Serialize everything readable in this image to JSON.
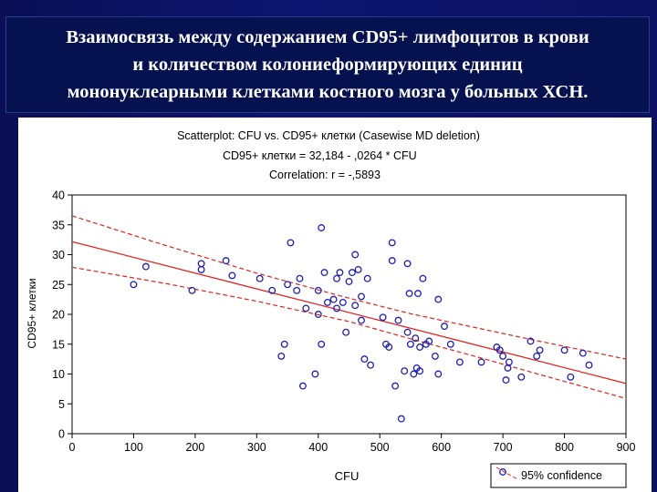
{
  "slide": {
    "title": "Взаимосвязь между содержанием CD95+ лимфоцитов в крови\nи количеством колониеформирующих единиц\nмононуклеарными клетками костного мозга у больных ХСН."
  },
  "colors": {
    "background": "#0b1160",
    "title_bar": "#06114f",
    "title_text": "#ffffff",
    "points": "#1f1fb4",
    "fit_line": "#e0231f",
    "confidence": "#e0231f"
  },
  "chart_data": {
    "type": "scatter",
    "title": "Scatterplot: CFU vs. CD95+ клетки (Casewise MD deletion)",
    "equation": "CD95+ клетки = 32,184 - ,0264  *  CFU",
    "correlation": "Correlation: r = -,5893",
    "xlabel": "CFU",
    "ylabel": "CD95+ клетки",
    "xlim": [
      0,
      900
    ],
    "ylim": [
      0,
      40
    ],
    "xticks": [
      0,
      100,
      200,
      300,
      400,
      500,
      600,
      700,
      800,
      900
    ],
    "yticks": [
      0,
      5,
      10,
      15,
      20,
      25,
      30,
      35,
      40
    ],
    "grid": false,
    "legend": {
      "label": "95% confidence",
      "placement": "bottom-right"
    },
    "regression": {
      "intercept": 32.184,
      "slope": -0.0264
    },
    "confidence_band": {
      "x": [
        0,
        150,
        300,
        450,
        550,
        650,
        750,
        900
      ],
      "upper": [
        36.5,
        31.6,
        26.9,
        22.7,
        20.1,
        17.9,
        15.7,
        12.5
      ],
      "lower": [
        27.9,
        25.2,
        22.2,
        18.8,
        15.9,
        13.1,
        10.2,
        5.9
      ]
    },
    "points": [
      {
        "x": 100,
        "y": 25
      },
      {
        "x": 120,
        "y": 28
      },
      {
        "x": 195,
        "y": 24
      },
      {
        "x": 210,
        "y": 28.5
      },
      {
        "x": 210,
        "y": 27.5
      },
      {
        "x": 250,
        "y": 29
      },
      {
        "x": 260,
        "y": 26.5
      },
      {
        "x": 305,
        "y": 26
      },
      {
        "x": 325,
        "y": 24
      },
      {
        "x": 340,
        "y": 13
      },
      {
        "x": 345,
        "y": 15
      },
      {
        "x": 350,
        "y": 25
      },
      {
        "x": 355,
        "y": 32
      },
      {
        "x": 365,
        "y": 24
      },
      {
        "x": 370,
        "y": 26
      },
      {
        "x": 375,
        "y": 8
      },
      {
        "x": 380,
        "y": 21
      },
      {
        "x": 395,
        "y": 10
      },
      {
        "x": 400,
        "y": 24
      },
      {
        "x": 400,
        "y": 20
      },
      {
        "x": 405,
        "y": 15
      },
      {
        "x": 405,
        "y": 34.5
      },
      {
        "x": 410,
        "y": 27
      },
      {
        "x": 415,
        "y": 22
      },
      {
        "x": 425,
        "y": 22.5
      },
      {
        "x": 430,
        "y": 26
      },
      {
        "x": 430,
        "y": 21
      },
      {
        "x": 435,
        "y": 27
      },
      {
        "x": 440,
        "y": 22
      },
      {
        "x": 445,
        "y": 17
      },
      {
        "x": 450,
        "y": 25.5
      },
      {
        "x": 455,
        "y": 27
      },
      {
        "x": 460,
        "y": 21.5
      },
      {
        "x": 460,
        "y": 30
      },
      {
        "x": 465,
        "y": 27.5
      },
      {
        "x": 470,
        "y": 19
      },
      {
        "x": 470,
        "y": 23
      },
      {
        "x": 475,
        "y": 12.5
      },
      {
        "x": 480,
        "y": 26
      },
      {
        "x": 485,
        "y": 11.5
      },
      {
        "x": 505,
        "y": 19.5
      },
      {
        "x": 510,
        "y": 15
      },
      {
        "x": 515,
        "y": 14.5
      },
      {
        "x": 520,
        "y": 32
      },
      {
        "x": 520,
        "y": 29
      },
      {
        "x": 525,
        "y": 8
      },
      {
        "x": 530,
        "y": 19
      },
      {
        "x": 535,
        "y": 2.5
      },
      {
        "x": 540,
        "y": 10.5
      },
      {
        "x": 545,
        "y": 17
      },
      {
        "x": 545,
        "y": 28.5
      },
      {
        "x": 548,
        "y": 23.5
      },
      {
        "x": 550,
        "y": 15
      },
      {
        "x": 555,
        "y": 10
      },
      {
        "x": 558,
        "y": 16
      },
      {
        "x": 560,
        "y": 11
      },
      {
        "x": 562,
        "y": 23.5
      },
      {
        "x": 565,
        "y": 14.5
      },
      {
        "x": 565,
        "y": 10.5
      },
      {
        "x": 570,
        "y": 26
      },
      {
        "x": 575,
        "y": 15
      },
      {
        "x": 580,
        "y": 15.5
      },
      {
        "x": 590,
        "y": 13
      },
      {
        "x": 595,
        "y": 10
      },
      {
        "x": 595,
        "y": 22.5
      },
      {
        "x": 605,
        "y": 18
      },
      {
        "x": 615,
        "y": 15
      },
      {
        "x": 630,
        "y": 12
      },
      {
        "x": 665,
        "y": 12
      },
      {
        "x": 690,
        "y": 14.5
      },
      {
        "x": 695,
        "y": 14
      },
      {
        "x": 700,
        "y": 13
      },
      {
        "x": 705,
        "y": 9
      },
      {
        "x": 708,
        "y": 11
      },
      {
        "x": 710,
        "y": 12
      },
      {
        "x": 730,
        "y": 9.5
      },
      {
        "x": 745,
        "y": 15.5
      },
      {
        "x": 755,
        "y": 13
      },
      {
        "x": 760,
        "y": 14
      },
      {
        "x": 800,
        "y": 14
      },
      {
        "x": 810,
        "y": 9.5
      },
      {
        "x": 830,
        "y": 13.5
      },
      {
        "x": 840,
        "y": 11.5
      }
    ]
  }
}
